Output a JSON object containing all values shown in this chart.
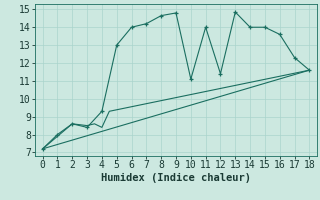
{
  "xlabel": "Humidex (Indice chaleur)",
  "xlim": [
    -0.5,
    18.5
  ],
  "ylim": [
    6.8,
    15.3
  ],
  "xticks": [
    0,
    1,
    2,
    3,
    4,
    5,
    6,
    7,
    8,
    9,
    10,
    11,
    12,
    13,
    14,
    15,
    16,
    17,
    18
  ],
  "yticks": [
    7,
    8,
    9,
    10,
    11,
    12,
    13,
    14,
    15
  ],
  "bg_color": "#cce8e0",
  "grid_color": "#aad4cc",
  "line_color": "#1a6e60",
  "series1_x": [
    0,
    1,
    2,
    3,
    4,
    5,
    6,
    7,
    8,
    9,
    10,
    11,
    12,
    13,
    14,
    15,
    16,
    17,
    18
  ],
  "series1_y": [
    7.2,
    8.0,
    8.6,
    8.4,
    9.3,
    13.0,
    14.0,
    14.2,
    14.65,
    14.8,
    11.1,
    14.0,
    11.4,
    14.85,
    14.0,
    14.0,
    13.6,
    12.3,
    11.6
  ],
  "series2_x": [
    0,
    2,
    3,
    3.5,
    4,
    4.5,
    18
  ],
  "series2_y": [
    7.2,
    8.6,
    8.5,
    8.6,
    8.4,
    9.3,
    11.6
  ],
  "series3_x": [
    0,
    18
  ],
  "series3_y": [
    7.2,
    11.6
  ],
  "xlabel_fontsize": 7.5,
  "tick_fontsize": 7.0
}
